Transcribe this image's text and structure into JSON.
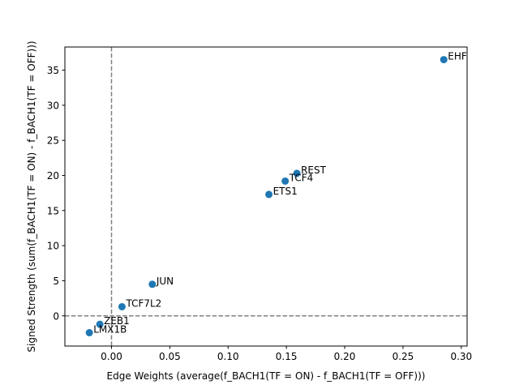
{
  "chart_data": {
    "type": "scatter",
    "title": "",
    "xlabel": "Edge Weights (average(f_BACH1(TF = ON) - f_BACH1(TF = OFF)))",
    "ylabel": "Signed Strength (sum(f_BACH1(TF = ON) - f_BACH1(TF = OFF)))",
    "xlim": [
      -0.04,
      0.305
    ],
    "ylim": [
      -4.3,
      38.3
    ],
    "xticks": [
      0.0,
      0.05,
      0.1,
      0.15,
      0.2,
      0.25,
      0.3
    ],
    "xtick_labels": [
      "0.00",
      "0.05",
      "0.10",
      "0.15",
      "0.20",
      "0.25",
      "0.30"
    ],
    "yticks": [
      0,
      5,
      10,
      15,
      20,
      25,
      30,
      35
    ],
    "ytick_labels": [
      "0",
      "5",
      "10",
      "15",
      "20",
      "25",
      "30",
      "35"
    ],
    "grid": false,
    "reference_lines": {
      "x": 0,
      "y": 0,
      "style": "dashed",
      "color": "#808080"
    },
    "marker_color": "#1f77b4",
    "points": [
      {
        "label": "EHF",
        "x": 0.285,
        "y": 36.5
      },
      {
        "label": "REST",
        "x": 0.159,
        "y": 20.3
      },
      {
        "label": "TCF4",
        "x": 0.149,
        "y": 19.2
      },
      {
        "label": "ETS1",
        "x": 0.135,
        "y": 17.3
      },
      {
        "label": "JUN",
        "x": 0.035,
        "y": 4.5
      },
      {
        "label": "TCF7L2",
        "x": 0.009,
        "y": 1.3
      },
      {
        "label": "ZEB1",
        "x": -0.01,
        "y": -1.2
      },
      {
        "label": "LMX1B",
        "x": -0.019,
        "y": -2.4
      }
    ]
  }
}
